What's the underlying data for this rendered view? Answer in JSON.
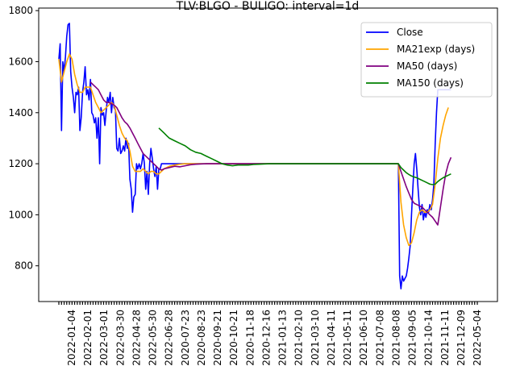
{
  "chart_data": {
    "type": "line",
    "title": "TLV:BLGO - BULIGO: interval=1d",
    "xlabel": "",
    "ylabel": "",
    "ylim": [
      660,
      1810
    ],
    "yticks": [
      800,
      1000,
      1200,
      1400,
      1600,
      1800
    ],
    "n_points": 160,
    "x_tick_labels": [
      "2022-01-04",
      "2022-02-01",
      "2022-03-01",
      "2022-03-30",
      "2022-04-28",
      "2022-05-30",
      "2022-06-28",
      "2020-07-23",
      "2020-08-23",
      "2020-09-21",
      "2020-10-21",
      "2020-11-18",
      "2020-12-16",
      "2021-01-13",
      "2021-02-10",
      "2021-03-10",
      "2021-04-11",
      "2021-05-11",
      "2021-06-10",
      "2021-07-08",
      "2021-08-08",
      "2021-09-05",
      "2021-10-14",
      "2021-11-11",
      "2021-12-09",
      "2022-05-04"
    ],
    "legend": {
      "placement": "upper-right",
      "frame": true
    },
    "series": [
      {
        "name": "Close",
        "color": "#0000ff",
        "points": [
          [
            0,
            1610
          ],
          [
            0.5,
            1670
          ],
          [
            1,
            1330
          ],
          [
            1.5,
            1600
          ],
          [
            2,
            1560
          ],
          [
            2.5,
            1620
          ],
          [
            3,
            1700
          ],
          [
            3.5,
            1745
          ],
          [
            4,
            1750
          ],
          [
            4.5,
            1560
          ],
          [
            5,
            1500
          ],
          [
            5.5,
            1460
          ],
          [
            6,
            1400
          ],
          [
            6.5,
            1480
          ],
          [
            7,
            1470
          ],
          [
            7.5,
            1500
          ],
          [
            8,
            1330
          ],
          [
            8.5,
            1380
          ],
          [
            9,
            1480
          ],
          [
            9.5,
            1520
          ],
          [
            10,
            1580
          ],
          [
            10.5,
            1470
          ],
          [
            11,
            1490
          ],
          [
            11.5,
            1450
          ],
          [
            12,
            1530
          ],
          [
            12.5,
            1400
          ],
          [
            13,
            1390
          ],
          [
            13.5,
            1360
          ],
          [
            14,
            1380
          ],
          [
            14.5,
            1300
          ],
          [
            15,
            1380
          ],
          [
            15.5,
            1200
          ],
          [
            16,
            1420
          ],
          [
            16.5,
            1390
          ],
          [
            17,
            1400
          ],
          [
            17.5,
            1350
          ],
          [
            18,
            1410
          ],
          [
            18.5,
            1460
          ],
          [
            19,
            1440
          ],
          [
            19.5,
            1480
          ],
          [
            20,
            1400
          ],
          [
            20.5,
            1460
          ],
          [
            21,
            1420
          ],
          [
            21.5,
            1410
          ],
          [
            22,
            1260
          ],
          [
            22.5,
            1250
          ],
          [
            23,
            1300
          ],
          [
            23.5,
            1240
          ],
          [
            24,
            1250
          ],
          [
            24.5,
            1270
          ],
          [
            25,
            1250
          ],
          [
            25.5,
            1300
          ],
          [
            26,
            1260
          ],
          [
            26.5,
            1280
          ],
          [
            27,
            1140
          ],
          [
            27.5,
            1100
          ],
          [
            28,
            1010
          ],
          [
            28.5,
            1070
          ],
          [
            29,
            1080
          ],
          [
            29.5,
            1200
          ],
          [
            30,
            1180
          ],
          [
            30.5,
            1200
          ],
          [
            31,
            1180
          ],
          [
            31.5,
            1200
          ],
          [
            32,
            1240
          ],
          [
            32.5,
            1200
          ],
          [
            33,
            1100
          ],
          [
            33.5,
            1170
          ],
          [
            34,
            1080
          ],
          [
            34.5,
            1200
          ],
          [
            35,
            1260
          ],
          [
            35.5,
            1220
          ],
          [
            36,
            1180
          ],
          [
            36.5,
            1150
          ],
          [
            37,
            1190
          ],
          [
            37.5,
            1100
          ],
          [
            38,
            1180
          ],
          [
            38.5,
            1180
          ],
          [
            39,
            1200
          ],
          [
            40,
            1200
          ],
          [
            45,
            1200
          ],
          [
            50,
            1200
          ],
          [
            55,
            1200
          ],
          [
            60,
            1200
          ],
          [
            65,
            1200
          ],
          [
            70,
            1200
          ],
          [
            75,
            1200
          ],
          [
            80,
            1200
          ],
          [
            85,
            1200
          ],
          [
            90,
            1200
          ],
          [
            95,
            1200
          ],
          [
            100,
            1200
          ],
          [
            105,
            1200
          ],
          [
            110,
            1200
          ],
          [
            115,
            1200
          ],
          [
            120,
            1200
          ],
          [
            125,
            1200
          ],
          [
            129,
            1200
          ],
          [
            129.5,
            760
          ],
          [
            130,
            710
          ],
          [
            130.5,
            760
          ],
          [
            131,
            740
          ],
          [
            131.5,
            750
          ],
          [
            132,
            760
          ],
          [
            132.5,
            790
          ],
          [
            133,
            830
          ],
          [
            133.5,
            880
          ],
          [
            134,
            1000
          ],
          [
            134.5,
            1100
          ],
          [
            135,
            1200
          ],
          [
            135.5,
            1240
          ],
          [
            136,
            1180
          ],
          [
            136.5,
            1100
          ],
          [
            137,
            1030
          ],
          [
            137.5,
            1000
          ],
          [
            138,
            1040
          ],
          [
            138.5,
            980
          ],
          [
            139,
            1010
          ],
          [
            139.5,
            990
          ],
          [
            140,
            1020
          ],
          [
            140.5,
            1010
          ],
          [
            141,
            1040
          ],
          [
            141.5,
            1020
          ],
          [
            142,
            1060
          ],
          [
            142.5,
            1120
          ],
          [
            143,
            1280
          ],
          [
            143.5,
            1400
          ],
          [
            144,
            1490
          ],
          [
            145,
            1490
          ],
          [
            147,
            1490
          ],
          [
            149,
            1490
          ]
        ]
      },
      {
        "name": "MA21exp (days)",
        "color": "#ffa500",
        "points": [
          [
            0,
            1610
          ],
          [
            1,
            1520
          ],
          [
            2,
            1560
          ],
          [
            3,
            1600
          ],
          [
            4,
            1630
          ],
          [
            5,
            1610
          ],
          [
            6,
            1550
          ],
          [
            7,
            1510
          ],
          [
            8,
            1480
          ],
          [
            9,
            1480
          ],
          [
            10,
            1500
          ],
          [
            11,
            1500
          ],
          [
            12,
            1500
          ],
          [
            13,
            1470
          ],
          [
            14,
            1440
          ],
          [
            15,
            1420
          ],
          [
            16,
            1400
          ],
          [
            17,
            1410
          ],
          [
            18,
            1420
          ],
          [
            19,
            1430
          ],
          [
            20,
            1440
          ],
          [
            21,
            1430
          ],
          [
            22,
            1390
          ],
          [
            23,
            1350
          ],
          [
            24,
            1320
          ],
          [
            25,
            1300
          ],
          [
            26,
            1290
          ],
          [
            27,
            1250
          ],
          [
            28,
            1190
          ],
          [
            29,
            1170
          ],
          [
            30,
            1170
          ],
          [
            31,
            1170
          ],
          [
            32,
            1180
          ],
          [
            33,
            1170
          ],
          [
            34,
            1160
          ],
          [
            35,
            1170
          ],
          [
            36,
            1170
          ],
          [
            37,
            1160
          ],
          [
            38,
            1160
          ],
          [
            39,
            1170
          ],
          [
            40,
            1180
          ],
          [
            42,
            1190
          ],
          [
            44,
            1195
          ],
          [
            46,
            1198
          ],
          [
            48,
            1200
          ],
          [
            52,
            1200
          ],
          [
            60,
            1200
          ],
          [
            70,
            1200
          ],
          [
            80,
            1200
          ],
          [
            90,
            1200
          ],
          [
            100,
            1200
          ],
          [
            110,
            1200
          ],
          [
            120,
            1200
          ],
          [
            129,
            1200
          ],
          [
            130,
            1050
          ],
          [
            131,
            960
          ],
          [
            132,
            910
          ],
          [
            133,
            880
          ],
          [
            134,
            890
          ],
          [
            135,
            930
          ],
          [
            136,
            980
          ],
          [
            137,
            1010
          ],
          [
            138,
            1020
          ],
          [
            139,
            1010
          ],
          [
            140,
            1010
          ],
          [
            141,
            1020
          ],
          [
            142,
            1040
          ],
          [
            143,
            1120
          ],
          [
            144,
            1220
          ],
          [
            145,
            1300
          ],
          [
            146,
            1350
          ],
          [
            147,
            1390
          ],
          [
            148,
            1420
          ]
        ]
      },
      {
        "name": "MA50 (days)",
        "color": "#800080",
        "points": [
          [
            12,
            1520
          ],
          [
            13,
            1510
          ],
          [
            14,
            1500
          ],
          [
            15,
            1490
          ],
          [
            16,
            1470
          ],
          [
            17,
            1450
          ],
          [
            18,
            1440
          ],
          [
            19,
            1440
          ],
          [
            20,
            1435
          ],
          [
            21,
            1430
          ],
          [
            22,
            1420
          ],
          [
            23,
            1400
          ],
          [
            24,
            1380
          ],
          [
            25,
            1365
          ],
          [
            26,
            1355
          ],
          [
            27,
            1340
          ],
          [
            28,
            1320
          ],
          [
            29,
            1300
          ],
          [
            30,
            1280
          ],
          [
            31,
            1260
          ],
          [
            32,
            1240
          ],
          [
            33,
            1230
          ],
          [
            34,
            1220
          ],
          [
            35,
            1210
          ],
          [
            36,
            1200
          ],
          [
            37,
            1190
          ],
          [
            38,
            1180
          ],
          [
            39,
            1175
          ],
          [
            40,
            1180
          ],
          [
            42,
            1185
          ],
          [
            44,
            1190
          ],
          [
            46,
            1188
          ],
          [
            48,
            1192
          ],
          [
            50,
            1196
          ],
          [
            52,
            1198
          ],
          [
            56,
            1200
          ],
          [
            60,
            1200
          ],
          [
            70,
            1200
          ],
          [
            80,
            1200
          ],
          [
            90,
            1200
          ],
          [
            100,
            1200
          ],
          [
            110,
            1200
          ],
          [
            120,
            1200
          ],
          [
            129,
            1200
          ],
          [
            130,
            1170
          ],
          [
            131,
            1140
          ],
          [
            132,
            1110
          ],
          [
            133,
            1085
          ],
          [
            134,
            1060
          ],
          [
            135,
            1045
          ],
          [
            136,
            1040
          ],
          [
            137,
            1035
          ],
          [
            138,
            1030
          ],
          [
            139,
            1020
          ],
          [
            140,
            1010
          ],
          [
            141,
            1000
          ],
          [
            142,
            990
          ],
          [
            143,
            975
          ],
          [
            144,
            960
          ],
          [
            145,
            1030
          ],
          [
            146,
            1100
          ],
          [
            147,
            1160
          ],
          [
            148,
            1200
          ],
          [
            149,
            1225
          ]
        ]
      },
      {
        "name": "MA150 (days)",
        "color": "#008000",
        "points": [
          [
            38,
            1340
          ],
          [
            39,
            1330
          ],
          [
            40,
            1320
          ],
          [
            41,
            1310
          ],
          [
            42,
            1300
          ],
          [
            44,
            1290
          ],
          [
            46,
            1280
          ],
          [
            48,
            1270
          ],
          [
            50,
            1255
          ],
          [
            52,
            1245
          ],
          [
            54,
            1240
          ],
          [
            56,
            1230
          ],
          [
            58,
            1220
          ],
          [
            60,
            1210
          ],
          [
            62,
            1200
          ],
          [
            64,
            1195
          ],
          [
            66,
            1192
          ],
          [
            68,
            1195
          ],
          [
            70,
            1195
          ],
          [
            72,
            1195
          ],
          [
            74,
            1197
          ],
          [
            76,
            1198
          ],
          [
            80,
            1200
          ],
          [
            90,
            1200
          ],
          [
            100,
            1200
          ],
          [
            110,
            1200
          ],
          [
            120,
            1200
          ],
          [
            129,
            1200
          ],
          [
            130,
            1185
          ],
          [
            131,
            1175
          ],
          [
            132,
            1165
          ],
          [
            133,
            1158
          ],
          [
            134,
            1152
          ],
          [
            135,
            1148
          ],
          [
            136,
            1145
          ],
          [
            137,
            1140
          ],
          [
            138,
            1135
          ],
          [
            139,
            1130
          ],
          [
            140,
            1125
          ],
          [
            141,
            1120
          ],
          [
            142,
            1118
          ],
          [
            143,
            1120
          ],
          [
            144,
            1130
          ],
          [
            145,
            1138
          ],
          [
            146,
            1145
          ],
          [
            147,
            1150
          ],
          [
            148,
            1155
          ],
          [
            149,
            1160
          ]
        ]
      }
    ]
  }
}
